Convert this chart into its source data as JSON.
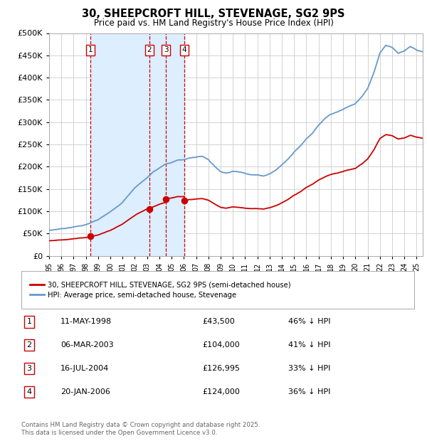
{
  "title": "30, SHEEPCROFT HILL, STEVENAGE, SG2 9PS",
  "subtitle": "Price paid vs. HM Land Registry's House Price Index (HPI)",
  "ylim": [
    0,
    500000
  ],
  "yticks": [
    0,
    50000,
    100000,
    150000,
    200000,
    250000,
    300000,
    350000,
    400000,
    450000,
    500000
  ],
  "bg_color": "#ffffff",
  "plot_bg_color": "#ffffff",
  "grid_color": "#cccccc",
  "hpi_color": "#6699cc",
  "price_color": "#cc0000",
  "highlight_fill": "#ddeeff",
  "dashed_line_color": "#cc0000",
  "legend_label_price": "30, SHEEPCROFT HILL, STEVENAGE, SG2 9PS (semi-detached house)",
  "legend_label_hpi": "HPI: Average price, semi-detached house, Stevenage",
  "transactions": [
    {
      "num": 1,
      "date": "11-MAY-1998",
      "price": 43500,
      "pct": "46%",
      "direction": "↓",
      "year_x": 1998.36
    },
    {
      "num": 2,
      "date": "06-MAR-2003",
      "price": 104000,
      "pct": "41%",
      "direction": "↓",
      "year_x": 2003.18
    },
    {
      "num": 3,
      "date": "16-JUL-2004",
      "price": 126995,
      "pct": "33%",
      "direction": "↓",
      "year_x": 2004.54
    },
    {
      "num": 4,
      "date": "20-JAN-2006",
      "price": 124000,
      "pct": "36%",
      "direction": "↓",
      "year_x": 2006.05
    }
  ],
  "footnote": "Contains HM Land Registry data © Crown copyright and database right 2025.\nThis data is licensed under the Open Government Licence v3.0.",
  "xmin": 1995.0,
  "xmax": 2025.5,
  "xtick_years": [
    1995,
    1996,
    1997,
    1998,
    1999,
    2000,
    2001,
    2002,
    2003,
    2004,
    2005,
    2006,
    2007,
    2008,
    2009,
    2010,
    2011,
    2012,
    2013,
    2014,
    2015,
    2016,
    2017,
    2018,
    2019,
    2020,
    2021,
    2022,
    2023,
    2024,
    2025
  ]
}
